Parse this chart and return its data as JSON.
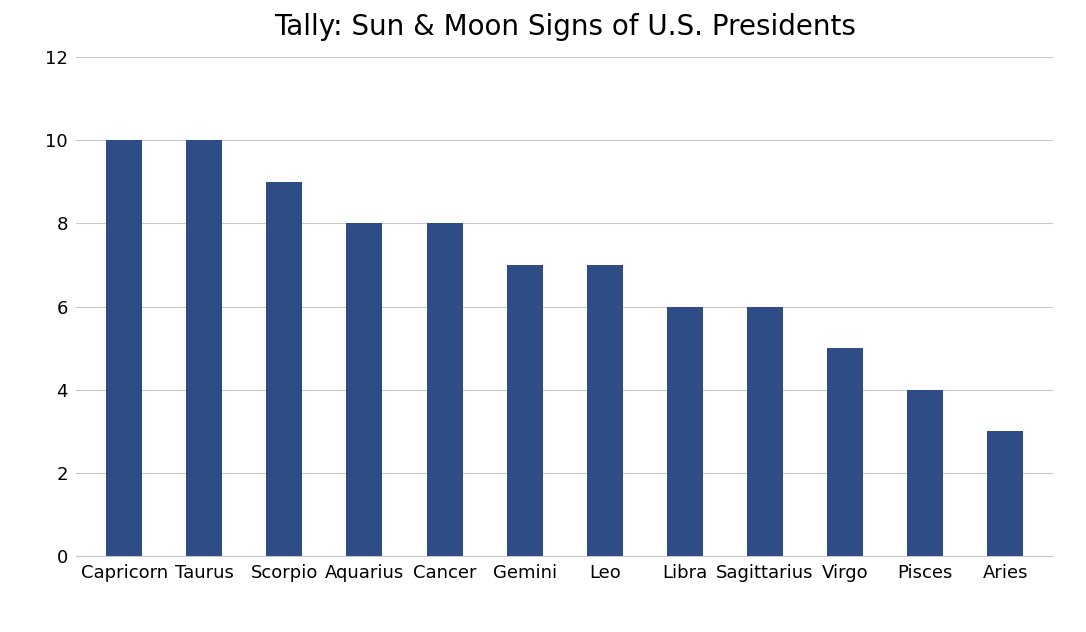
{
  "title": "Tally: Sun & Moon Signs of U.S. Presidents",
  "categories": [
    "Capricorn",
    "Taurus",
    "Scorpio",
    "Aquarius",
    "Cancer",
    "Gemini",
    "Leo",
    "Libra",
    "Sagittarius",
    "Virgo",
    "Pisces",
    "Aries"
  ],
  "values": [
    10,
    10,
    9,
    8,
    8,
    7,
    7,
    6,
    6,
    5,
    4,
    3
  ],
  "bar_color": "#2E4D87",
  "ylim": [
    0,
    12
  ],
  "yticks": [
    0,
    2,
    4,
    6,
    8,
    10,
    12
  ],
  "title_fontsize": 20,
  "tick_fontsize": 13,
  "background_color": "#ffffff",
  "grid_color": "#c8c8c8",
  "bar_width": 0.45,
  "figsize": [
    10.86,
    6.32
  ],
  "dpi": 100
}
